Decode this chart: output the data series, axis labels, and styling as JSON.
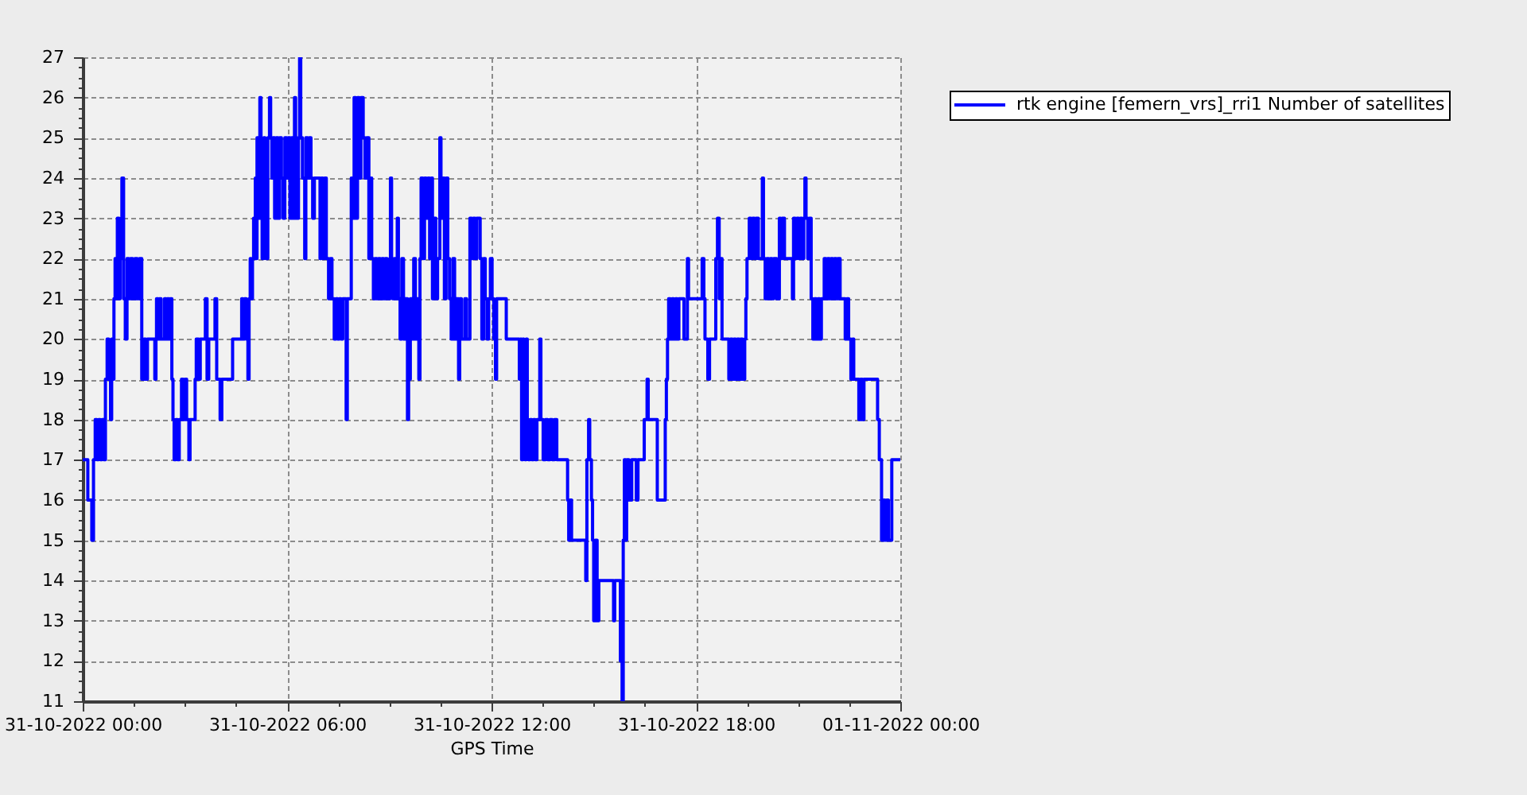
{
  "chart_data": {
    "type": "step",
    "xlabel": "GPS Time",
    "x": [
      "2022-10-31T00:00",
      "2022-10-31T00:09",
      "2022-10-31T00:16",
      "2022-10-31T00:19",
      "2022-10-31T00:22",
      "2022-10-31T00:25",
      "2022-10-31T00:28",
      "2022-10-31T00:31",
      "2022-10-31T00:34",
      "2022-10-31T00:37",
      "2022-10-31T00:40",
      "2022-10-31T00:43",
      "2022-10-31T00:46",
      "2022-10-31T00:49",
      "2022-10-31T00:51",
      "2022-10-31T00:53",
      "2022-10-31T00:55",
      "2022-10-31T00:57",
      "2022-10-31T00:59",
      "2022-10-31T01:01",
      "2022-10-31T01:04",
      "2022-10-31T01:06",
      "2022-10-31T01:09",
      "2022-10-31T01:12",
      "2022-10-31T01:15",
      "2022-10-31T01:18",
      "2022-10-31T01:21",
      "2022-10-31T01:24",
      "2022-10-31T01:28",
      "2022-10-31T01:32",
      "2022-10-31T01:36",
      "2022-10-31T01:40",
      "2022-10-31T01:44",
      "2022-10-31T01:48",
      "2022-10-31T01:51",
      "2022-10-31T01:54",
      "2022-10-31T02:07",
      "2022-10-31T02:09",
      "2022-10-31T02:10",
      "2022-10-31T02:13",
      "2022-10-31T02:15",
      "2022-10-31T02:18",
      "2022-10-31T02:24",
      "2022-10-31T02:27",
      "2022-10-31T02:29",
      "2022-10-31T02:32",
      "2022-10-31T02:34",
      "2022-10-31T02:37",
      "2022-10-31T02:39",
      "2022-10-31T02:41",
      "2022-10-31T02:44",
      "2022-10-31T02:47",
      "2022-10-31T02:50",
      "2022-10-31T02:54",
      "2022-10-31T02:57",
      "2022-10-31T03:00",
      "2022-10-31T03:03",
      "2022-10-31T03:07",
      "2022-10-31T03:09",
      "2022-10-31T03:18",
      "2022-10-31T03:20",
      "2022-10-31T03:24",
      "2022-10-31T03:27",
      "2022-10-31T03:36",
      "2022-10-31T03:39",
      "2022-10-31T03:42",
      "2022-10-31T03:53",
      "2022-10-31T03:56",
      "2022-10-31T04:02",
      "2022-10-31T04:05",
      "2022-10-31T04:24",
      "2022-10-31T04:40",
      "2022-10-31T04:42",
      "2022-10-31T04:45",
      "2022-10-31T04:48",
      "2022-10-31T04:51",
      "2022-10-31T04:53",
      "2022-10-31T04:55",
      "2022-10-31T04:57",
      "2022-10-31T04:59",
      "2022-10-31T05:01",
      "2022-10-31T05:03",
      "2022-10-31T05:04",
      "2022-10-31T05:06",
      "2022-10-31T05:07",
      "2022-10-31T05:10",
      "2022-10-31T05:12",
      "2022-10-31T05:14",
      "2022-10-31T05:16",
      "2022-10-31T05:19",
      "2022-10-31T05:21",
      "2022-10-31T05:23",
      "2022-10-31T05:26",
      "2022-10-31T05:29",
      "2022-10-31T05:31",
      "2022-10-31T05:33",
      "2022-10-31T05:35",
      "2022-10-31T05:38",
      "2022-10-31T05:41",
      "2022-10-31T05:44",
      "2022-10-31T05:47",
      "2022-10-31T05:50",
      "2022-10-31T05:53",
      "2022-10-31T05:56",
      "2022-10-31T05:59",
      "2022-10-31T06:02",
      "2022-10-31T06:05",
      "2022-10-31T06:08",
      "2022-10-31T06:11",
      "2022-10-31T06:13",
      "2022-10-31T06:15",
      "2022-10-31T06:17",
      "2022-10-31T06:20",
      "2022-10-31T06:22",
      "2022-10-31T06:24",
      "2022-10-31T06:27",
      "2022-10-31T06:31",
      "2022-10-31T06:33",
      "2022-10-31T06:36",
      "2022-10-31T06:39",
      "2022-10-31T06:42",
      "2022-10-31T06:45",
      "2022-10-31T06:48",
      "2022-10-31T06:58",
      "2022-10-31T07:00",
      "2022-10-31T07:03",
      "2022-10-31T07:06",
      "2022-10-31T07:09",
      "2022-10-31T07:13",
      "2022-10-31T07:16",
      "2022-10-31T07:19",
      "2022-10-31T07:23",
      "2022-10-31T07:26",
      "2022-10-31T07:29",
      "2022-10-31T07:32",
      "2022-10-31T07:35",
      "2022-10-31T07:38",
      "2022-10-31T07:44",
      "2022-10-31T07:46",
      "2022-10-31T07:53",
      "2022-10-31T07:55",
      "2022-10-31T07:58",
      "2022-10-31T08:01",
      "2022-10-31T08:04",
      "2022-10-31T08:07",
      "2022-10-31T08:10",
      "2022-10-31T08:14",
      "2022-10-31T08:17",
      "2022-10-31T08:20",
      "2022-10-31T08:24",
      "2022-10-31T08:26",
      "2022-10-31T08:29",
      "2022-10-31T08:32",
      "2022-10-31T08:35",
      "2022-10-31T08:38",
      "2022-10-31T08:41",
      "2022-10-31T08:44",
      "2022-10-31T08:47",
      "2022-10-31T08:50",
      "2022-10-31T08:53",
      "2022-10-31T08:56",
      "2022-10-31T09:01",
      "2022-10-31T09:02",
      "2022-10-31T09:04",
      "2022-10-31T09:06",
      "2022-10-31T09:09",
      "2022-10-31T09:12",
      "2022-10-31T09:14",
      "2022-10-31T09:16",
      "2022-10-31T09:19",
      "2022-10-31T09:22",
      "2022-10-31T09:25",
      "2022-10-31T09:28",
      "2022-10-31T09:32",
      "2022-10-31T09:34",
      "2022-10-31T09:37",
      "2022-10-31T09:40",
      "2022-10-31T09:43",
      "2022-10-31T09:46",
      "2022-10-31T09:49",
      "2022-10-31T09:52",
      "2022-10-31T09:54",
      "2022-10-31T09:56",
      "2022-10-31T09:59",
      "2022-10-31T10:02",
      "2022-10-31T10:05",
      "2022-10-31T10:08",
      "2022-10-31T10:11",
      "2022-10-31T10:14",
      "2022-10-31T10:16",
      "2022-10-31T10:19",
      "2022-10-31T10:22",
      "2022-10-31T10:25",
      "2022-10-31T10:29",
      "2022-10-31T10:31",
      "2022-10-31T10:34",
      "2022-10-31T10:37",
      "2022-10-31T10:40",
      "2022-10-31T10:43",
      "2022-10-31T10:46",
      "2022-10-31T10:49",
      "2022-10-31T10:52",
      "2022-10-31T10:55",
      "2022-10-31T10:58",
      "2022-10-31T11:02",
      "2022-10-31T11:04",
      "2022-10-31T11:07",
      "2022-10-31T11:13",
      "2022-10-31T11:16",
      "2022-10-31T11:22",
      "2022-10-31T11:25",
      "2022-10-31T11:28",
      "2022-10-31T11:31",
      "2022-10-31T11:34",
      "2022-10-31T11:40",
      "2022-10-31T11:43",
      "2022-10-31T11:46",
      "2022-10-31T11:49",
      "2022-10-31T11:52",
      "2022-10-31T11:55",
      "2022-10-31T11:58",
      "2022-10-31T12:01",
      "2022-10-31T12:04",
      "2022-10-31T12:07",
      "2022-10-31T12:09",
      "2022-10-31T12:26",
      "2022-10-31T12:49",
      "2022-10-31T12:51",
      "2022-10-31T12:53",
      "2022-10-31T12:55",
      "2022-10-31T12:57",
      "2022-10-31T12:59",
      "2022-10-31T13:01",
      "2022-10-31T13:03",
      "2022-10-31T13:05",
      "2022-10-31T13:08",
      "2022-10-31T13:11",
      "2022-10-31T13:14",
      "2022-10-31T13:17",
      "2022-10-31T13:20",
      "2022-10-31T13:25",
      "2022-10-31T13:27",
      "2022-10-31T13:31",
      "2022-10-31T13:35",
      "2022-10-31T13:39",
      "2022-10-31T13:43",
      "2022-10-31T13:47",
      "2022-10-31T13:51",
      "2022-10-31T13:55",
      "2022-10-31T14:14",
      "2022-10-31T14:16",
      "2022-10-31T14:18",
      "2022-10-31T14:21",
      "2022-10-31T14:46",
      "2022-10-31T14:48",
      "2022-10-31T14:51",
      "2022-10-31T14:53",
      "2022-10-31T14:56",
      "2022-10-31T14:58",
      "2022-10-31T15:00",
      "2022-10-31T15:03",
      "2022-10-31T15:06",
      "2022-10-31T15:09",
      "2022-10-31T15:35",
      "2022-10-31T15:37",
      "2022-10-31T15:47",
      "2022-10-31T15:50",
      "2022-10-31T15:52",
      "2022-10-31T15:54",
      "2022-10-31T15:56",
      "2022-10-31T15:58",
      "2022-10-31T16:02",
      "2022-10-31T16:07",
      "2022-10-31T16:15",
      "2022-10-31T16:18",
      "2022-10-31T16:29",
      "2022-10-31T16:34",
      "2022-10-31T16:36",
      "2022-10-31T16:52",
      "2022-10-31T17:06",
      "2022-10-31T17:08",
      "2022-10-31T17:10",
      "2022-10-31T17:12",
      "2022-10-31T17:15",
      "2022-10-31T17:18",
      "2022-10-31T17:21",
      "2022-10-31T17:24",
      "2022-10-31T17:27",
      "2022-10-31T17:30",
      "2022-10-31T17:39",
      "2022-10-31T17:45",
      "2022-10-31T17:47",
      "2022-10-31T18:11",
      "2022-10-31T18:14",
      "2022-10-31T18:16",
      "2022-10-31T18:21",
      "2022-10-31T18:24",
      "2022-10-31T18:35",
      "2022-10-31T18:38",
      "2022-10-31T18:41",
      "2022-10-31T18:43",
      "2022-10-31T18:46",
      "2022-10-31T18:58",
      "2022-10-31T19:01",
      "2022-10-31T19:04",
      "2022-10-31T19:07",
      "2022-10-31T19:10",
      "2022-10-31T19:13",
      "2022-10-31T19:16",
      "2022-10-31T19:19",
      "2022-10-31T19:22",
      "2022-10-31T19:26",
      "2022-10-31T19:28",
      "2022-10-31T19:30",
      "2022-10-31T19:34",
      "2022-10-31T19:37",
      "2022-10-31T19:40",
      "2022-10-31T19:43",
      "2022-10-31T19:46",
      "2022-10-31T19:50",
      "2022-10-31T19:57",
      "2022-10-31T19:59",
      "2022-10-31T20:02",
      "2022-10-31T20:05",
      "2022-10-31T20:08",
      "2022-10-31T20:11",
      "2022-10-31T20:14",
      "2022-10-31T20:17",
      "2022-10-31T20:22",
      "2022-10-31T20:27",
      "2022-10-31T20:29",
      "2022-10-31T20:32",
      "2022-10-31T20:36",
      "2022-10-31T20:50",
      "2022-10-31T20:52",
      "2022-10-31T20:55",
      "2022-10-31T20:58",
      "2022-10-31T21:01",
      "2022-10-31T21:04",
      "2022-10-31T21:07",
      "2022-10-31T21:10",
      "2022-10-31T21:12",
      "2022-10-31T21:14",
      "2022-10-31T21:17",
      "2022-10-31T21:20",
      "2022-10-31T21:23",
      "2022-10-31T21:26",
      "2022-10-31T21:29",
      "2022-10-31T21:32",
      "2022-10-31T21:35",
      "2022-10-31T21:38",
      "2022-10-31T21:41",
      "2022-10-31T21:46",
      "2022-10-31T21:49",
      "2022-10-31T21:52",
      "2022-10-31T21:55",
      "2022-10-31T21:58",
      "2022-10-31T22:01",
      "2022-10-31T22:04",
      "2022-10-31T22:07",
      "2022-10-31T22:10",
      "2022-10-31T22:14",
      "2022-10-31T22:23",
      "2022-10-31T22:26",
      "2022-10-31T22:29",
      "2022-10-31T22:33",
      "2022-10-31T22:36",
      "2022-10-31T22:38",
      "2022-10-31T22:47",
      "2022-10-31T22:50",
      "2022-10-31T22:53",
      "2022-10-31T22:56",
      "2022-10-31T23:20",
      "2022-10-31T23:23",
      "2022-10-31T23:27",
      "2022-10-31T23:30",
      "2022-10-31T23:33",
      "2022-10-31T23:36",
      "2022-10-31T23:39",
      "2022-10-31T23:45",
      "2022-11-01T00:00"
    ],
    "series": [
      {
        "name": "rtk engine [femern_vrs]_rri1 Number of satellites",
        "color": "#0000ff",
        "values": [
          17,
          16,
          15,
          17,
          18,
          17,
          18,
          17,
          18,
          17,
          19,
          20,
          19,
          18,
          20,
          19,
          21,
          22,
          21,
          23,
          21,
          22,
          24,
          21,
          20,
          22,
          21,
          22,
          21,
          22,
          21,
          22,
          19,
          20,
          19,
          20,
          19,
          20,
          21,
          20,
          21,
          20,
          21,
          20,
          21,
          20,
          21,
          19,
          18,
          17,
          18,
          17,
          18,
          19,
          18,
          19,
          18,
          17,
          18,
          19,
          20,
          19,
          20,
          21,
          19,
          20,
          21,
          19,
          18,
          19,
          20,
          21,
          20,
          21,
          20,
          19,
          21,
          22,
          21,
          22,
          23,
          22,
          24,
          22,
          25,
          23,
          26,
          24,
          22,
          25,
          24,
          22,
          25,
          26,
          25,
          24,
          25,
          23,
          25,
          23,
          25,
          24,
          23,
          25,
          24,
          25,
          23,
          25,
          23,
          26,
          25,
          23,
          25,
          27,
          25,
          24,
          22,
          25,
          24,
          25,
          24,
          23,
          24,
          22,
          24,
          22,
          24,
          22,
          21,
          22,
          21,
          20,
          21,
          20,
          21,
          20,
          21,
          18,
          21,
          24,
          23,
          26,
          23,
          26,
          24,
          26,
          25,
          24,
          25,
          22,
          24,
          22,
          21,
          22,
          21,
          22,
          21,
          22,
          21,
          22,
          21,
          22,
          24,
          22,
          21,
          22,
          21,
          23,
          21,
          20,
          22,
          20,
          21,
          18,
          19,
          21,
          20,
          22,
          20,
          21,
          19,
          22,
          24,
          22,
          24,
          23,
          24,
          22,
          24,
          21,
          23,
          21,
          22,
          25,
          23,
          24,
          21,
          24,
          22,
          21,
          20,
          22,
          20,
          21,
          19,
          21,
          20,
          21,
          20,
          23,
          22,
          23,
          22,
          23,
          22,
          20,
          22,
          21,
          20,
          21,
          22,
          21,
          20,
          19,
          21,
          20,
          19,
          20,
          17,
          20,
          19,
          17,
          20,
          18,
          17,
          18,
          17,
          18,
          17,
          18,
          20,
          18,
          17,
          18,
          17,
          18,
          17,
          18,
          17,
          16,
          15,
          16,
          15,
          14,
          17,
          18,
          17,
          16,
          15,
          13,
          15,
          13,
          14,
          13,
          14,
          12,
          11,
          15,
          17,
          15,
          17,
          16,
          17,
          16,
          17,
          18,
          19,
          18,
          16,
          18,
          19,
          20,
          21,
          20,
          21,
          20,
          21,
          20,
          21,
          20,
          22,
          21,
          22,
          21,
          20,
          19,
          20,
          22,
          23,
          21,
          22,
          20,
          19,
          20,
          19,
          20,
          19,
          20,
          19,
          20,
          19,
          20,
          21,
          22,
          23,
          22,
          23,
          22,
          23,
          22,
          24,
          22,
          21,
          22,
          21,
          22,
          21,
          22,
          21,
          23,
          22,
          23,
          22,
          21,
          23,
          22,
          23,
          22,
          23,
          22,
          23,
          24,
          23,
          22,
          23,
          21,
          20,
          21,
          20,
          21,
          20,
          21,
          22,
          21,
          22,
          21,
          22,
          21,
          22,
          21,
          22,
          21,
          20,
          21,
          20,
          19,
          20,
          19,
          18,
          19,
          18,
          19,
          18,
          17,
          15,
          16,
          15,
          16,
          15,
          17,
          17
        ]
      }
    ],
    "xlim": [
      "2022-10-31T00:00",
      "2022-11-01T00:00"
    ],
    "xticks": [
      {
        "value": "2022-10-31T00:00",
        "label": "31-10-2022 00:00"
      },
      {
        "value": "2022-10-31T01:30",
        "label": null
      },
      {
        "value": "2022-10-31T03:00",
        "label": null
      },
      {
        "value": "2022-10-31T04:30",
        "label": null
      },
      {
        "value": "2022-10-31T06:00",
        "label": "31-10-2022 06:00"
      },
      {
        "value": "2022-10-31T07:30",
        "label": null
      },
      {
        "value": "2022-10-31T09:00",
        "label": null
      },
      {
        "value": "2022-10-31T10:30",
        "label": null
      },
      {
        "value": "2022-10-31T12:00",
        "label": "31-10-2022 12:00"
      },
      {
        "value": "2022-10-31T13:30",
        "label": null
      },
      {
        "value": "2022-10-31T15:00",
        "label": null
      },
      {
        "value": "2022-10-31T16:30",
        "label": null
      },
      {
        "value": "2022-10-31T18:00",
        "label": "31-10-2022 18:00"
      },
      {
        "value": "2022-10-31T19:30",
        "label": null
      },
      {
        "value": "2022-10-31T21:00",
        "label": null
      },
      {
        "value": "2022-10-31T22:30",
        "label": null
      },
      {
        "value": "2022-11-01T00:00",
        "label": "01-11-2022 00:00"
      }
    ],
    "ylim": [
      11,
      27
    ],
    "yticks": [
      11,
      {
        "value": 11.25,
        "label": null
      },
      {
        "value": 11.5,
        "label": null
      },
      {
        "value": 11.75,
        "label": null
      },
      12,
      {
        "value": 12.25,
        "label": null
      },
      {
        "value": 12.5,
        "label": null
      },
      {
        "value": 12.75,
        "label": null
      },
      13,
      {
        "value": 13.25,
        "label": null
      },
      {
        "value": 13.5,
        "label": null
      },
      {
        "value": 13.75,
        "label": null
      },
      14,
      {
        "value": 14.25,
        "label": null
      },
      {
        "value": 14.5,
        "label": null
      },
      {
        "value": 14.75,
        "label": null
      },
      15,
      {
        "value": 15.25,
        "label": null
      },
      {
        "value": 15.5,
        "label": null
      },
      {
        "value": 15.75,
        "label": null
      },
      16,
      {
        "value": 16.25,
        "label": null
      },
      {
        "value": 16.5,
        "label": null
      },
      {
        "value": 16.75,
        "label": null
      },
      17,
      {
        "value": 17.25,
        "label": null
      },
      {
        "value": 17.5,
        "label": null
      },
      {
        "value": 17.75,
        "label": null
      },
      18,
      {
        "value": 18.25,
        "label": null
      },
      {
        "value": 18.5,
        "label": null
      },
      {
        "value": 18.75,
        "label": null
      },
      19,
      {
        "value": 19.25,
        "label": null
      },
      {
        "value": 19.5,
        "label": null
      },
      {
        "value": 19.75,
        "label": null
      },
      20,
      {
        "value": 20.25,
        "label": null
      },
      {
        "value": 20.5,
        "label": null
      },
      {
        "value": 20.75,
        "label": null
      },
      21,
      {
        "value": 21.25,
        "label": null
      },
      {
        "value": 21.5,
        "label": null
      },
      {
        "value": 21.75,
        "label": null
      },
      22,
      {
        "value": 22.25,
        "label": null
      },
      {
        "value": 22.5,
        "label": null
      },
      {
        "value": 22.75,
        "label": null
      },
      23,
      {
        "value": 23.25,
        "label": null
      },
      {
        "value": 23.5,
        "label": null
      },
      {
        "value": 23.75,
        "label": null
      },
      24,
      {
        "value": 24.25,
        "label": null
      },
      {
        "value": 24.5,
        "label": null
      },
      {
        "value": 24.75,
        "label": null
      },
      25,
      {
        "value": 25.25,
        "label": null
      },
      {
        "value": 25.5,
        "label": null
      },
      {
        "value": 25.75,
        "label": null
      },
      26,
      {
        "value": 26.25,
        "label": null
      },
      {
        "value": 26.5,
        "label": null
      },
      {
        "value": 26.75,
        "label": null
      },
      27
    ],
    "grid": true,
    "legend": "top right",
    "marker": "none",
    "line_style": "solid"
  }
}
